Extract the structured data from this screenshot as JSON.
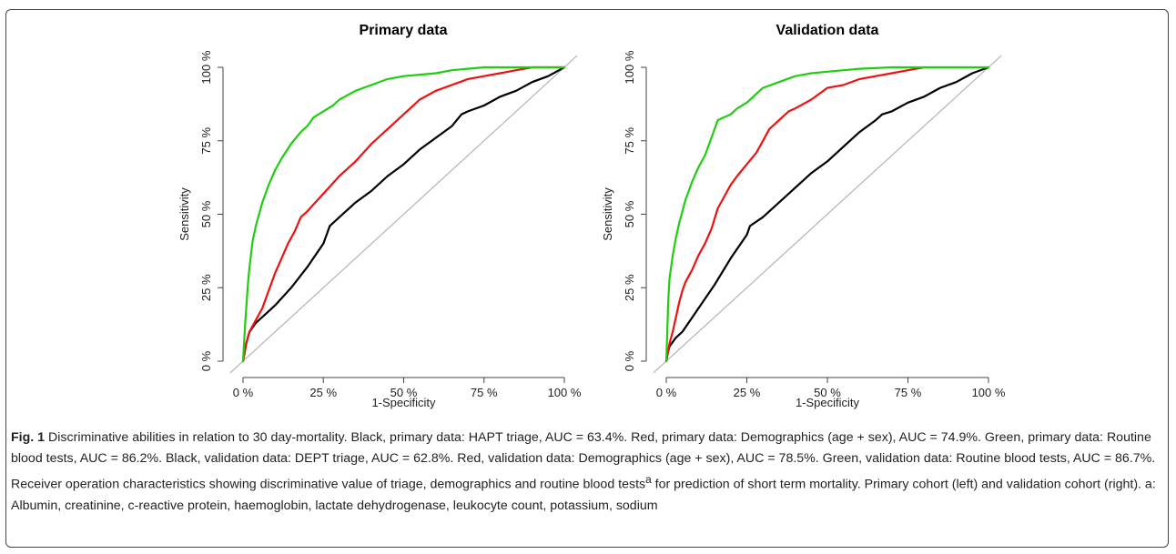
{
  "chart_data": [
    {
      "type": "line",
      "title": "Primary data",
      "xlabel": "1-Specificity",
      "ylabel": "Sensitivity",
      "xlim": [
        0,
        100
      ],
      "ylim": [
        0,
        100
      ],
      "x_ticks": [
        "0 %",
        "25 %",
        "50 %",
        "75 %",
        "100 %"
      ],
      "y_ticks": [
        "0 %",
        "25 %",
        "50 %",
        "75 %",
        "100 %"
      ],
      "grid": false,
      "legend": "none",
      "reference_line": {
        "x": [
          0,
          100
        ],
        "y": [
          0,
          100
        ],
        "color": "#b4b4b4"
      },
      "series": [
        {
          "color": "#000000",
          "x": [
            0,
            0.5,
            1,
            2,
            4,
            7,
            10,
            15,
            20,
            25,
            27,
            30,
            35,
            40,
            45,
            50,
            55,
            60,
            65,
            68,
            70,
            75,
            80,
            85,
            90,
            95,
            100
          ],
          "y": [
            0,
            3,
            6,
            10,
            13,
            16,
            19,
            25,
            32,
            40,
            46,
            49,
            54,
            58,
            63,
            67,
            72,
            76,
            80,
            84,
            85,
            87,
            90,
            92,
            95,
            97,
            100
          ]
        },
        {
          "color": "#ee1111",
          "x": [
            0,
            1,
            2,
            3,
            4,
            6,
            8,
            10,
            12,
            14,
            16,
            18,
            20,
            25,
            30,
            35,
            40,
            45,
            50,
            55,
            60,
            65,
            70,
            75,
            80,
            85,
            90,
            95,
            100
          ],
          "y": [
            0,
            6,
            10,
            12,
            14,
            18,
            24,
            30,
            35,
            40,
            44,
            49,
            51,
            57,
            63,
            68,
            74,
            79,
            84,
            89,
            92,
            94,
            96,
            97,
            98,
            99,
            100,
            100,
            100
          ]
        },
        {
          "color": "#22cc11",
          "x": [
            0,
            0.5,
            1,
            1.5,
            2,
            3,
            4,
            5,
            6,
            8,
            10,
            12,
            15,
            18,
            20,
            22,
            25,
            28,
            30,
            35,
            40,
            45,
            50,
            55,
            60,
            65,
            70,
            75,
            80,
            90,
            100
          ],
          "y": [
            0,
            10,
            18,
            26,
            32,
            41,
            46,
            50,
            54,
            60,
            65,
            69,
            74,
            78,
            80,
            83,
            85,
            87,
            89,
            92,
            94,
            96,
            97,
            97.5,
            98,
            99,
            99.5,
            100,
            100,
            100,
            100
          ]
        }
      ]
    },
    {
      "type": "line",
      "title": "Validation data",
      "xlabel": "1-Specificity",
      "ylabel": "Sensitivity",
      "xlim": [
        0,
        100
      ],
      "ylim": [
        0,
        100
      ],
      "x_ticks": [
        "0 %",
        "25 %",
        "50 %",
        "75 %",
        "100 %"
      ],
      "y_ticks": [
        "0 %",
        "25 %",
        "50 %",
        "75 %",
        "100 %"
      ],
      "grid": false,
      "legend": "none",
      "reference_line": {
        "x": [
          0,
          100
        ],
        "y": [
          0,
          100
        ],
        "color": "#b4b4b4"
      },
      "series": [
        {
          "color": "#000000",
          "x": [
            0,
            0.5,
            1,
            3,
            5,
            10,
            15,
            20,
            25,
            26,
            30,
            35,
            40,
            45,
            50,
            55,
            60,
            65,
            67,
            70,
            75,
            80,
            85,
            90,
            95,
            100
          ],
          "y": [
            0,
            3,
            5,
            8,
            10,
            18,
            26,
            35,
            43,
            46,
            49,
            54,
            59,
            64,
            68,
            73,
            78,
            82,
            84,
            85,
            88,
            90,
            93,
            95,
            98,
            100
          ]
        },
        {
          "color": "#ee1111",
          "x": [
            0,
            0.5,
            1,
            2,
            3,
            4,
            5,
            6,
            8,
            10,
            12,
            14,
            16,
            18,
            20,
            22,
            25,
            28,
            30,
            32,
            35,
            38,
            40,
            45,
            50,
            55,
            60,
            65,
            70,
            75,
            80
          ],
          "y": [
            0,
            3,
            6,
            10,
            15,
            20,
            24,
            27,
            31,
            36,
            40,
            45,
            52,
            56,
            60,
            63,
            67,
            71,
            75,
            79,
            82,
            85,
            86,
            89,
            93,
            94,
            96,
            97,
            98,
            99,
            100
          ]
        },
        {
          "color": "#22cc11",
          "x": [
            0,
            0.3,
            0.6,
            1,
            2,
            3,
            4,
            5,
            6,
            7,
            8,
            10,
            12,
            14,
            16,
            18,
            20,
            22,
            25,
            28,
            30,
            35,
            40,
            45,
            50,
            55,
            60,
            70,
            80,
            90,
            100
          ],
          "y": [
            0,
            10,
            20,
            28,
            36,
            42,
            47,
            51,
            55,
            58,
            61,
            66,
            70,
            76,
            82,
            83,
            84,
            86,
            88,
            91,
            93,
            95,
            97,
            98,
            98.5,
            99,
            99.5,
            100,
            100,
            100,
            100
          ]
        }
      ]
    }
  ],
  "caption": {
    "fig_label": "Fig. 1",
    "text_part1": " Discriminative abilities in relation to 30 day-mortality. Black, primary data: HAPT triage, AUC = 63.4%. Red, primary data: Demographics (age + sex), AUC = 74.9%. Green, primary data: Routine blood tests, AUC = 86.2%. Black, validation data: DEPT triage, AUC = 62.8%. Red, validation data: Demographics (age + sex), AUC = 78.5%. Green, validation data: Routine blood tests, AUC = 86.7%. Receiver operation characteristics showing discriminative value of triage, demographics and routine blood tests",
    "superscript": "a",
    "text_part2": " for prediction of short term mortality. Primary cohort (left) and validation cohort (right). a: Albumin, creatinine, c-reactive protein, haemoglobin, lactate dehydrogenase, leukocyte count, potassium, sodium"
  }
}
